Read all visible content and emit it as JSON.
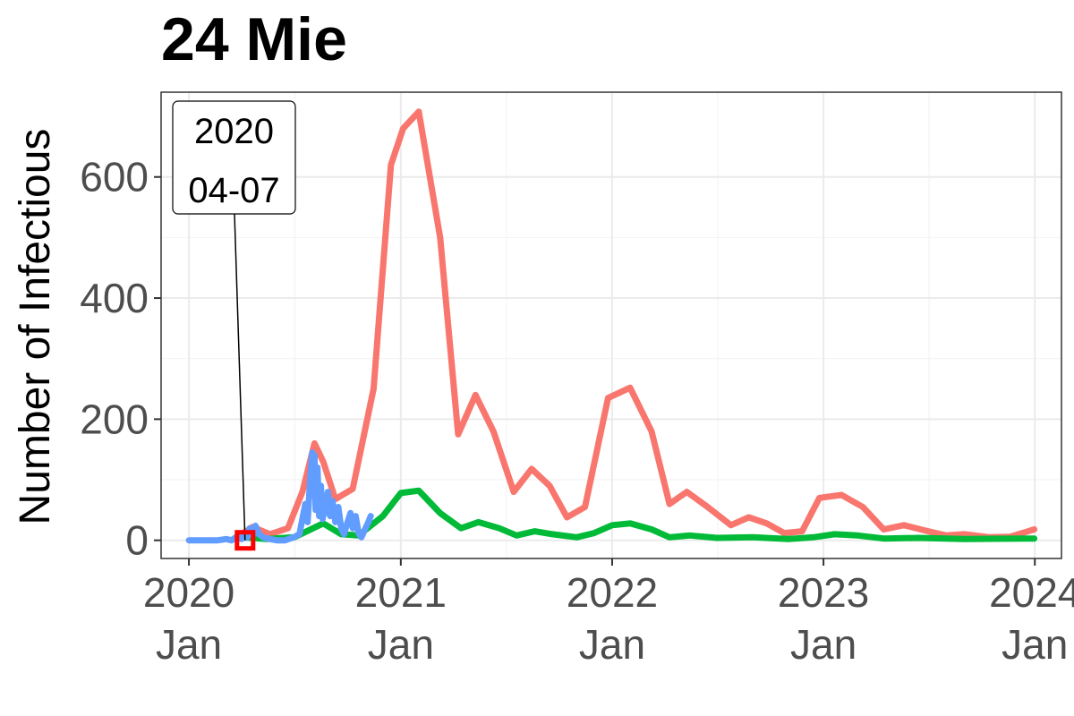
{
  "chart_data": {
    "type": "line",
    "title": "24 Mie",
    "ylabel": "Number of Infectious",
    "xlabel": "",
    "x_range": [
      "2019-11-14",
      "2024-02-16"
    ],
    "ylim": [
      -30,
      740
    ],
    "grid": true,
    "legend": "none",
    "x_ticks": [
      {
        "date": "2020-01-01",
        "line1": "2020",
        "line2": "Jan"
      },
      {
        "date": "2021-01-01",
        "line1": "2021",
        "line2": "Jan"
      },
      {
        "date": "2022-01-01",
        "line1": "2022",
        "line2": "Jan"
      },
      {
        "date": "2023-01-01",
        "line1": "2023",
        "line2": "Jan"
      },
      {
        "date": "2024-01-01",
        "line1": "2024",
        "line2": "Jan"
      }
    ],
    "y_ticks": [
      0,
      200,
      400,
      600
    ],
    "series": [
      {
        "color": "#F8766D",
        "points": [
          [
            "2020-04-01",
            10
          ],
          [
            "2020-04-20",
            22
          ],
          [
            "2020-05-20",
            10
          ],
          [
            "2020-06-20",
            20
          ],
          [
            "2020-07-15",
            80
          ],
          [
            "2020-08-05",
            160
          ],
          [
            "2020-08-20",
            130
          ],
          [
            "2020-09-10",
            68
          ],
          [
            "2020-10-10",
            85
          ],
          [
            "2020-11-15",
            250
          ],
          [
            "2020-12-15",
            620
          ],
          [
            "2021-01-05",
            680
          ],
          [
            "2021-02-01",
            708
          ],
          [
            "2021-03-10",
            500
          ],
          [
            "2021-04-10",
            175
          ],
          [
            "2021-05-10",
            240
          ],
          [
            "2021-06-10",
            180
          ],
          [
            "2021-07-15",
            80
          ],
          [
            "2021-08-15",
            118
          ],
          [
            "2021-09-15",
            90
          ],
          [
            "2021-10-15",
            38
          ],
          [
            "2021-11-15",
            55
          ],
          [
            "2021-12-25",
            235
          ],
          [
            "2022-02-01",
            252
          ],
          [
            "2022-03-10",
            180
          ],
          [
            "2022-04-10",
            60
          ],
          [
            "2022-05-10",
            80
          ],
          [
            "2022-06-15",
            55
          ],
          [
            "2022-07-25",
            25
          ],
          [
            "2022-08-25",
            38
          ],
          [
            "2022-09-25",
            28
          ],
          [
            "2022-10-25",
            12
          ],
          [
            "2022-11-25",
            15
          ],
          [
            "2022-12-25",
            70
          ],
          [
            "2023-02-01",
            75
          ],
          [
            "2023-03-10",
            55
          ],
          [
            "2023-04-15",
            18
          ],
          [
            "2023-05-20",
            25
          ],
          [
            "2023-07-01",
            15
          ],
          [
            "2023-08-01",
            8
          ],
          [
            "2023-09-01",
            10
          ],
          [
            "2023-10-15",
            5
          ],
          [
            "2023-11-20",
            6
          ],
          [
            "2023-12-31",
            18
          ]
        ]
      },
      {
        "color": "#00BA38",
        "points": [
          [
            "2020-04-01",
            5
          ],
          [
            "2020-05-15",
            2
          ],
          [
            "2020-07-01",
            5
          ],
          [
            "2020-08-20",
            28
          ],
          [
            "2020-09-20",
            10
          ],
          [
            "2020-10-20",
            8
          ],
          [
            "2020-12-01",
            40
          ],
          [
            "2021-01-01",
            78
          ],
          [
            "2021-02-01",
            82
          ],
          [
            "2021-03-10",
            45
          ],
          [
            "2021-04-15",
            20
          ],
          [
            "2021-05-15",
            30
          ],
          [
            "2021-06-20",
            20
          ],
          [
            "2021-07-20",
            8
          ],
          [
            "2021-08-20",
            15
          ],
          [
            "2021-09-20",
            10
          ],
          [
            "2021-11-01",
            5
          ],
          [
            "2021-12-01",
            12
          ],
          [
            "2022-01-01",
            25
          ],
          [
            "2022-02-01",
            28
          ],
          [
            "2022-03-10",
            18
          ],
          [
            "2022-04-10",
            5
          ],
          [
            "2022-05-15",
            8
          ],
          [
            "2022-07-01",
            4
          ],
          [
            "2022-09-01",
            5
          ],
          [
            "2022-11-01",
            2
          ],
          [
            "2022-12-15",
            5
          ],
          [
            "2023-01-20",
            10
          ],
          [
            "2023-03-01",
            8
          ],
          [
            "2023-04-15",
            3
          ],
          [
            "2023-06-15",
            4
          ],
          [
            "2023-09-01",
            2
          ],
          [
            "2023-12-31",
            3
          ]
        ]
      },
      {
        "color": "#619CFF",
        "points": [
          [
            "2020-01-01",
            0
          ],
          [
            "2020-02-01",
            0
          ],
          [
            "2020-02-20",
            0
          ],
          [
            "2020-03-05",
            2
          ],
          [
            "2020-03-15",
            0
          ],
          [
            "2020-03-22",
            5
          ],
          [
            "2020-04-01",
            2
          ],
          [
            "2020-04-05",
            10
          ],
          [
            "2020-04-10",
            4
          ],
          [
            "2020-04-15",
            20
          ],
          [
            "2020-04-20",
            8
          ],
          [
            "2020-04-25",
            24
          ],
          [
            "2020-05-01",
            10
          ],
          [
            "2020-05-10",
            4
          ],
          [
            "2020-05-20",
            2
          ],
          [
            "2020-06-01",
            0
          ],
          [
            "2020-06-15",
            0
          ],
          [
            "2020-06-30",
            5
          ],
          [
            "2020-07-10",
            10
          ],
          [
            "2020-07-20",
            60
          ],
          [
            "2020-07-24",
            30
          ],
          [
            "2020-07-28",
            95
          ],
          [
            "2020-08-01",
            145
          ],
          [
            "2020-08-03",
            100
          ],
          [
            "2020-08-05",
            140
          ],
          [
            "2020-08-07",
            50
          ],
          [
            "2020-08-10",
            120
          ],
          [
            "2020-08-13",
            40
          ],
          [
            "2020-08-16",
            90
          ],
          [
            "2020-08-19",
            35
          ],
          [
            "2020-08-22",
            70
          ],
          [
            "2020-08-25",
            45
          ],
          [
            "2020-08-28",
            80
          ],
          [
            "2020-09-01",
            40
          ],
          [
            "2020-09-05",
            65
          ],
          [
            "2020-09-10",
            30
          ],
          [
            "2020-09-15",
            55
          ],
          [
            "2020-09-20",
            20
          ],
          [
            "2020-09-25",
            10
          ],
          [
            "2020-10-01",
            30
          ],
          [
            "2020-10-06",
            45
          ],
          [
            "2020-10-10",
            20
          ],
          [
            "2020-10-15",
            40
          ],
          [
            "2020-10-20",
            12
          ],
          [
            "2020-10-25",
            5
          ],
          [
            "2020-11-01",
            20
          ],
          [
            "2020-11-06",
            30
          ],
          [
            "2020-11-10",
            40
          ]
        ]
      }
    ],
    "annotations": [
      {
        "date": "2020-04-07",
        "value": 0,
        "line1": "2020",
        "line2": "04-07",
        "marker_color": "#FF0000"
      }
    ]
  }
}
